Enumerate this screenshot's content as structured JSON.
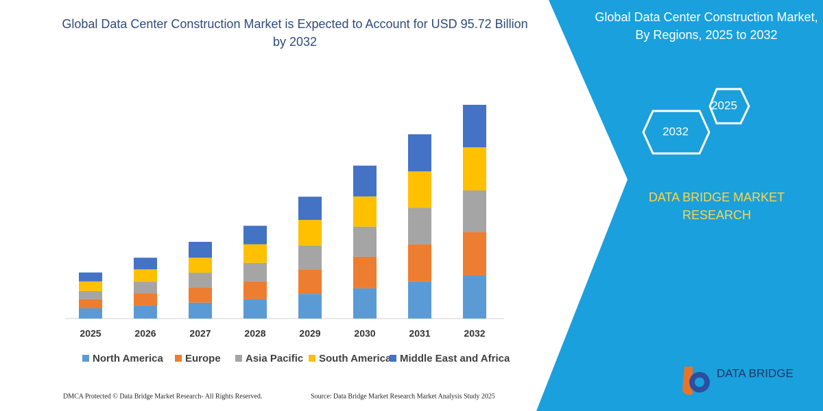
{
  "chart_data": {
    "type": "stacked-bar",
    "title": "Global Data Center Construction Market is Expected to Account for USD 95.72 Billion by 2032",
    "categories": [
      "2025",
      "2026",
      "2027",
      "2028",
      "2029",
      "2030",
      "2031",
      "2032"
    ],
    "series": [
      {
        "name": "North America",
        "color": "#5b9bd5",
        "values": [
          4.6,
          5.8,
          7.1,
          8.6,
          11.0,
          13.5,
          16.6,
          19.3
        ]
      },
      {
        "name": "Europe",
        "color": "#ed7d31",
        "values": [
          4.0,
          5.5,
          6.7,
          8.0,
          11.0,
          14.1,
          16.6,
          19.3
        ]
      },
      {
        "name": "Asia Pacific",
        "color": "#a5a5a5",
        "values": [
          3.7,
          5.2,
          6.7,
          8.3,
          10.7,
          13.5,
          16.3,
          18.7
        ]
      },
      {
        "name": "South America",
        "color": "#ffc000",
        "values": [
          4.3,
          5.5,
          6.7,
          8.3,
          11.4,
          13.5,
          16.3,
          19.3
        ]
      },
      {
        "name": "Middle East and Africa",
        "color": "#4472c4",
        "values": [
          4.0,
          5.2,
          7.1,
          8.3,
          10.4,
          13.8,
          16.6,
          19.0
        ]
      }
    ]
  },
  "panel": {
    "title": "Global Data Center Construction Market, By Regions, 2025 to 2032",
    "hexagons": [
      "2025",
      "2032"
    ],
    "brand": "DATA BRIDGE MARKET RESEARCH",
    "logo": "DATA BRIDGE"
  },
  "footer": {
    "left": "DMCA Protected © Data Bridge Market Research-  All Rights Reserved.",
    "right": "Source: Data Bridge Market Research  Market Analysis Study 2025"
  }
}
